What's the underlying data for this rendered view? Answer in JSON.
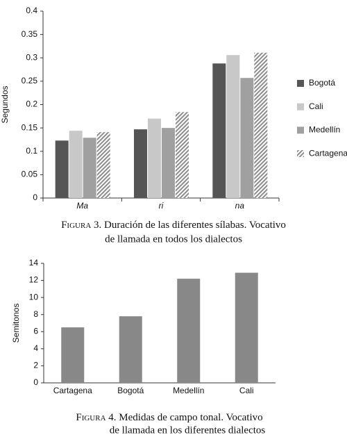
{
  "chart_data": [
    {
      "type": "bar",
      "y_label": "Segundos",
      "categories": [
        "Ma",
        "ri",
        "na"
      ],
      "series": [
        {
          "name": "Bogotá",
          "color": "#555555",
          "values": [
            0.123,
            0.147,
            0.288
          ]
        },
        {
          "name": "Cali",
          "color": "#c8c8c8",
          "values": [
            0.144,
            0.17,
            0.306
          ]
        },
        {
          "name": "Medellín",
          "color": "#a0a0a0",
          "values": [
            0.129,
            0.15,
            0.257
          ]
        },
        {
          "name": "Cartagena",
          "color": "#8c8c8c",
          "pattern": "hatch",
          "values": [
            0.141,
            0.184,
            0.311
          ]
        }
      ],
      "ylim": [
        0,
        0.4
      ],
      "yticks": [
        0,
        0.05,
        0.1,
        0.15,
        0.2,
        0.25,
        0.3,
        0.35,
        0.4
      ],
      "legend": "right",
      "grid": false,
      "caption": {
        "label": "Figura 3.",
        "lines": [
          "Duración de las diferentes sílabas. Vocativo",
          "de llamada en todos los dialectos"
        ]
      }
    },
    {
      "type": "bar",
      "y_label": "Semitonos",
      "categories": [
        "Cartagena",
        "Bogotá",
        "Medellín",
        "Cali"
      ],
      "values": [
        6.5,
        7.8,
        12.2,
        12.9
      ],
      "color": "#888888",
      "ylim": [
        0,
        14
      ],
      "yticks": [
        0,
        2,
        4,
        6,
        8,
        10,
        12,
        14
      ],
      "grid": false,
      "caption": {
        "label": "Figura 4.",
        "lines": [
          "Medidas de campo tonal. Vocativo",
          "de llamada en los diferentes dialectos"
        ]
      }
    }
  ]
}
